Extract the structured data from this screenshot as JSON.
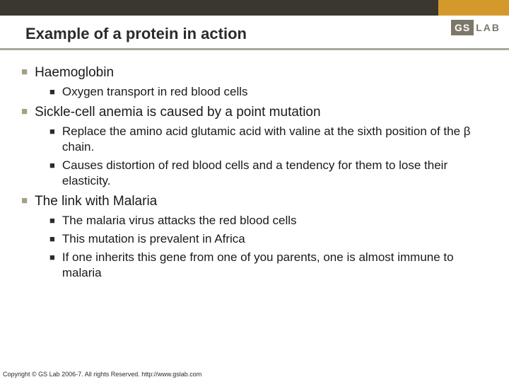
{
  "colors": {
    "top_bar": "#3a372f",
    "accent": "#d39a2b",
    "underline": "#aaa79a",
    "l1_bullet": "#a79f82",
    "l2_bullet": "#2b2b2b",
    "text": "#1a1a1a",
    "logo_bg": "#7c7768"
  },
  "logo": {
    "box": "GS",
    "text": "LAB"
  },
  "title": "Example of a protein in action",
  "bullets": {
    "b1": "Haemoglobin",
    "b1_1": "Oxygen transport in red blood cells",
    "b2": "Sickle-cell anemia is caused by a point mutation",
    "b2_1": " Replace the amino acid glutamic acid with valine at the sixth position of the β chain.",
    "b2_2": "Causes distortion of red blood cells and a tendency for them to lose their elasticity.",
    "b3": "The link with Malaria",
    "b3_1": "The malaria virus attacks the red blood cells",
    "b3_2": "This mutation is prevalent in Africa",
    "b3_3": "If one inherits this gene from one of you parents, one is almost immune to malaria"
  },
  "footer": "Copyright © GS Lab 2006-7. All rights Reserved. http://www.gslab.com",
  "typography": {
    "title_fontsize": 22,
    "l1_fontsize": 19,
    "l2_fontsize": 17,
    "footer_fontsize": 9
  }
}
